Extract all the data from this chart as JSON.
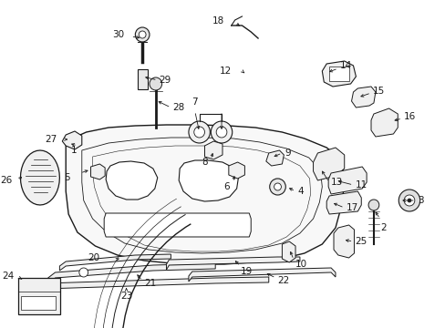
{
  "background_color": "#ffffff",
  "figsize": [
    4.89,
    3.6
  ],
  "dpi": 100,
  "line_color": "#1a1a1a",
  "label_fontsize": 7.5,
  "label_color": "#000000",
  "fig_width": 489,
  "fig_height": 360
}
